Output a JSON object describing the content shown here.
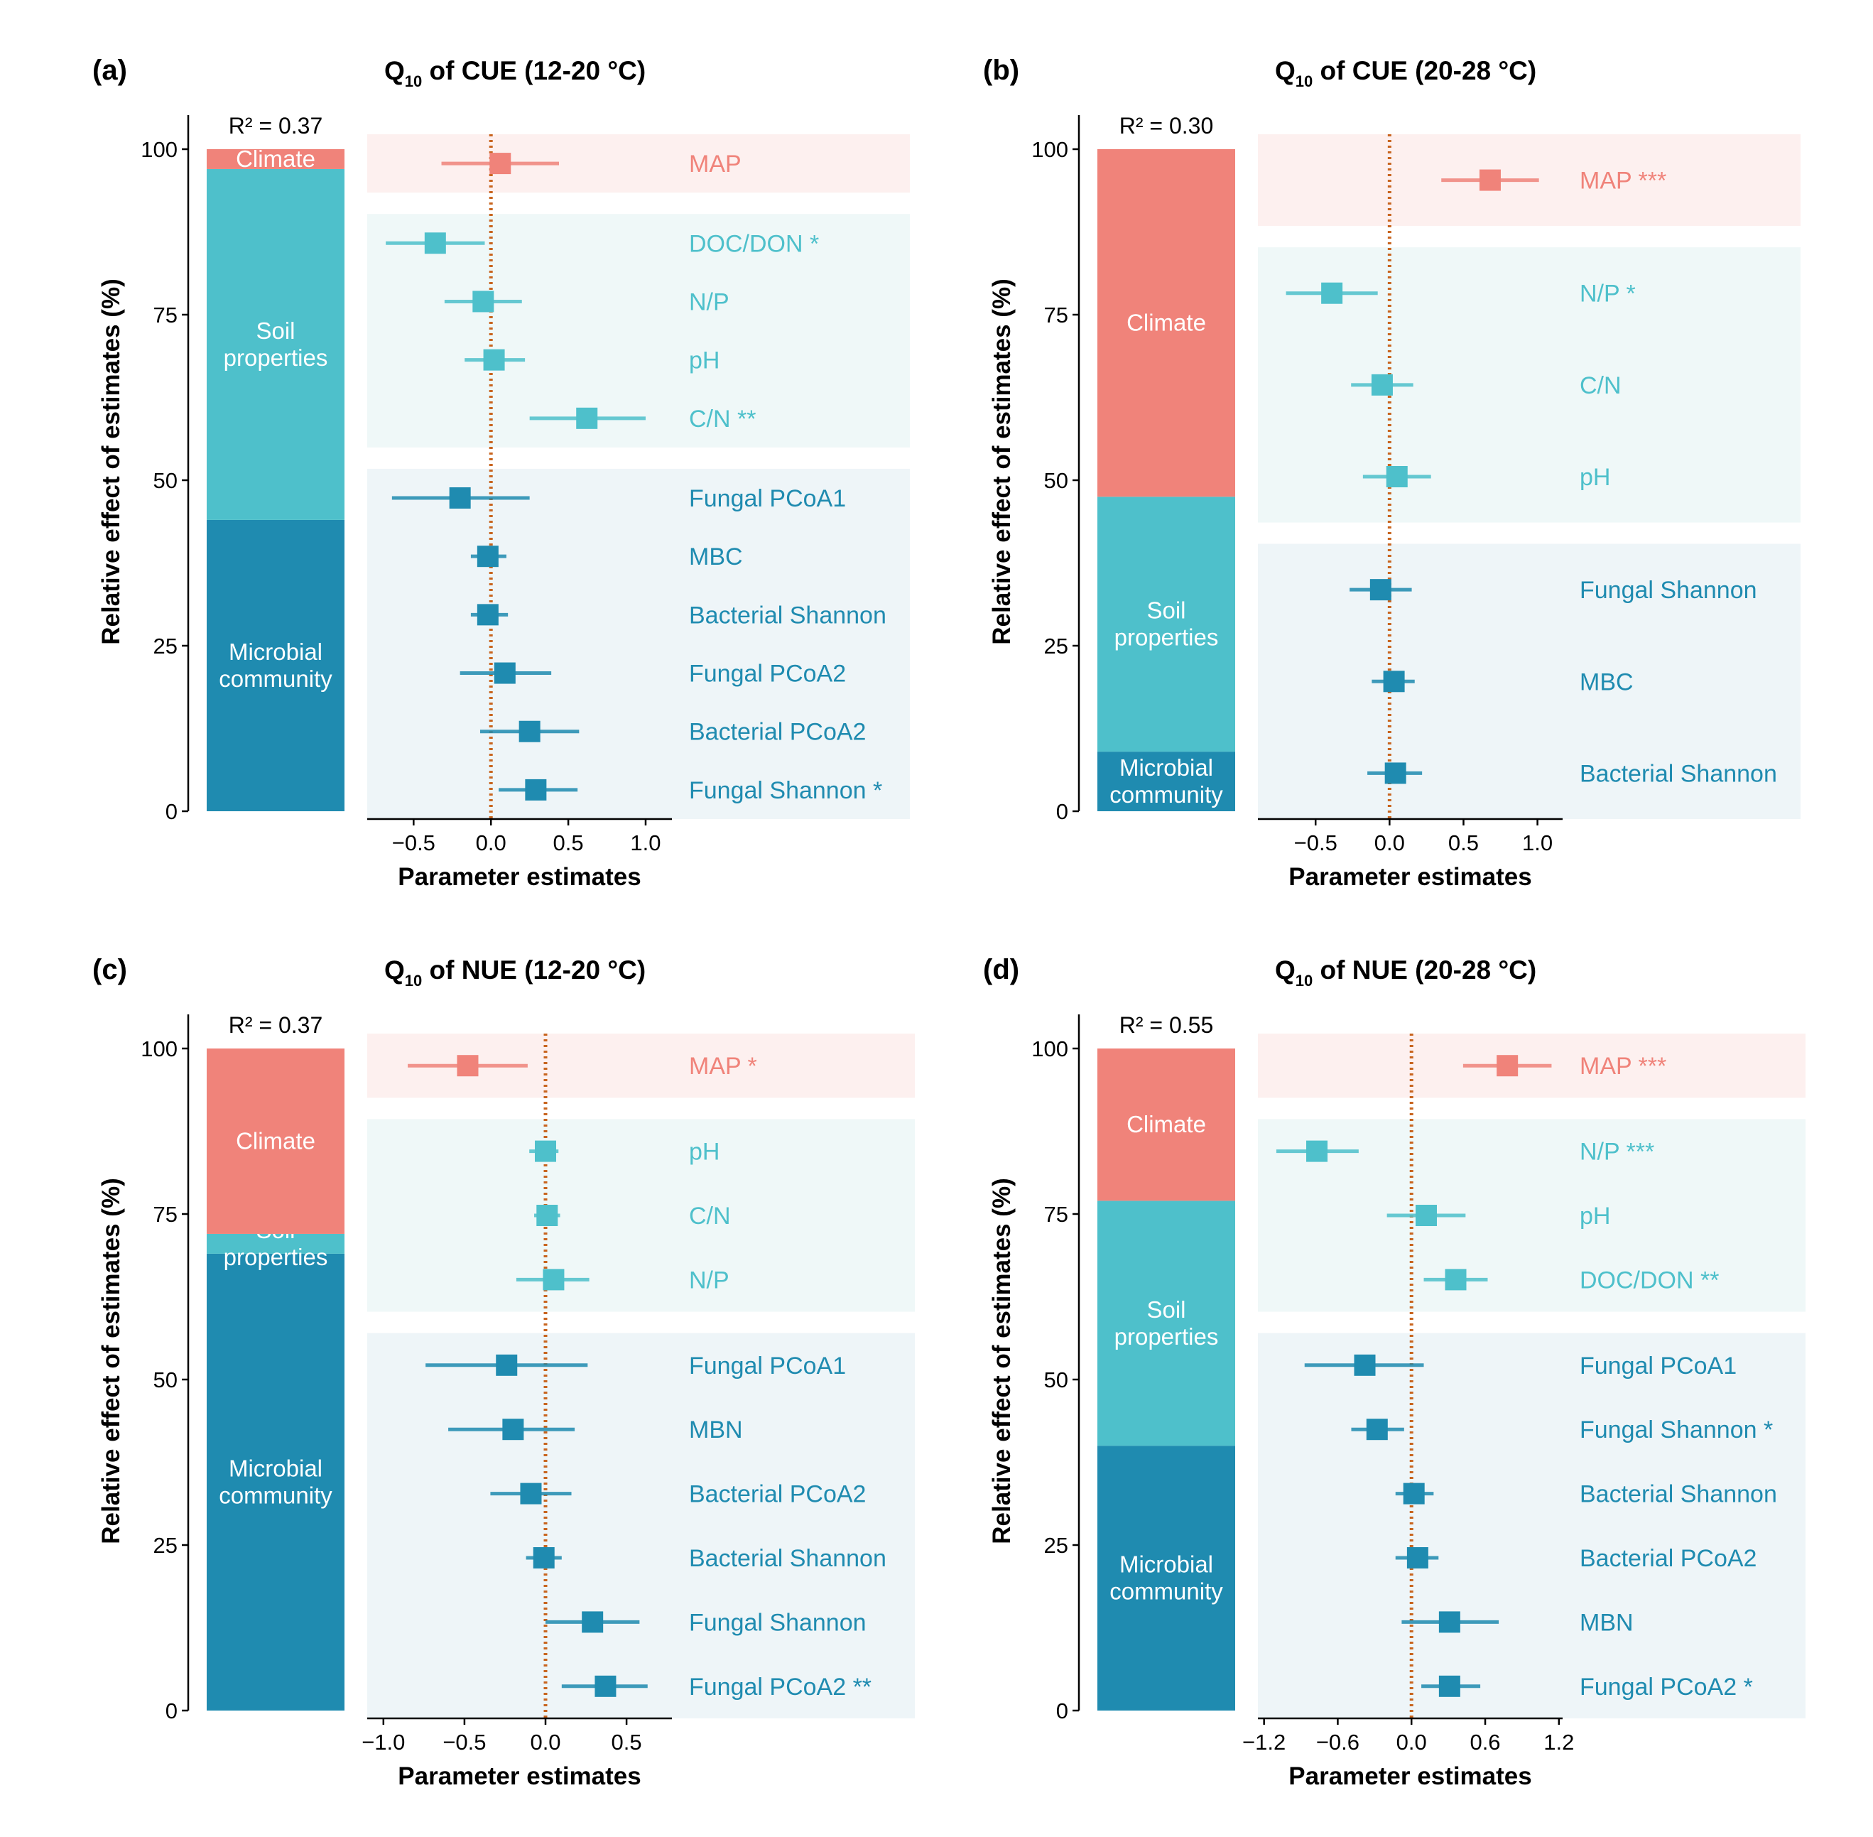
{
  "colors": {
    "Climate": "#F0837A",
    "Soil properties": "#4EC0CB",
    "Microbial community": "#1F8BB0",
    "shade_Climate": "#FDF0EF",
    "shade_Soil properties": "#EFF8F8",
    "shade_Microbial community": "#EEF5F8",
    "zero_line": "#C8641E",
    "axis": "#000000"
  },
  "chart_data": [
    {
      "type": "forest+stacked-bar",
      "panel": "(a)",
      "title": {
        "q": "Q",
        "sub": "10",
        "rest": " of CUE (12-20 °C)"
      },
      "r2": "R² = 0.37",
      "ylabel": "Relative effect of estimates (%)",
      "yticks": [
        0,
        25,
        50,
        75,
        100
      ],
      "stack": [
        {
          "name": "Microbial community",
          "label": [
            "Microbial",
            "community"
          ],
          "value": 44
        },
        {
          "name": "Soil properties",
          "label": [
            "Soil",
            "properties"
          ],
          "value": 53
        },
        {
          "name": "Climate",
          "label": [
            "Climate"
          ],
          "value": 3
        }
      ],
      "xlabel": "Parameter estimates",
      "xlim": [
        -0.8,
        1.17
      ],
      "xticks": [
        -0.5,
        0,
        0.5,
        1.0
      ],
      "xtick_labels": [
        "−0.5",
        "0.0",
        "0.5",
        "1.0"
      ],
      "groups": [
        {
          "name": "Climate",
          "rows": [
            {
              "label": "MAP",
              "est": 0.06,
              "lo": -0.32,
              "hi": 0.44
            }
          ]
        },
        {
          "name": "Soil properties",
          "rows": [
            {
              "label": "DOC/DON *",
              "est": -0.36,
              "lo": -0.68,
              "hi": -0.04
            },
            {
              "label": "N/P",
              "est": -0.05,
              "lo": -0.3,
              "hi": 0.2
            },
            {
              "label": "pH",
              "est": 0.02,
              "lo": -0.17,
              "hi": 0.22
            },
            {
              "label": "C/N **",
              "est": 0.62,
              "lo": 0.25,
              "hi": 1.0
            }
          ]
        },
        {
          "name": "Microbial community",
          "rows": [
            {
              "label": "Fungal PCoA1",
              "est": -0.2,
              "lo": -0.64,
              "hi": 0.25
            },
            {
              "label": "MBC",
              "est": -0.02,
              "lo": -0.13,
              "hi": 0.1
            },
            {
              "label": "Bacterial Shannon",
              "est": -0.02,
              "lo": -0.13,
              "hi": 0.11
            },
            {
              "label": "Fungal PCoA2",
              "est": 0.09,
              "lo": -0.2,
              "hi": 0.39
            },
            {
              "label": "Bacterial PCoA2",
              "est": 0.25,
              "lo": -0.07,
              "hi": 0.57
            },
            {
              "label": "Fungal Shannon *",
              "est": 0.29,
              "lo": 0.05,
              "hi": 0.56
            }
          ]
        }
      ]
    },
    {
      "type": "forest+stacked-bar",
      "panel": "(b)",
      "title": {
        "q": "Q",
        "sub": "10",
        "rest": " of CUE (20-28 °C)"
      },
      "r2": "R² = 0.30",
      "ylabel": "Relative effect of estimates (%)",
      "yticks": [
        0,
        25,
        50,
        75,
        100
      ],
      "stack": [
        {
          "name": "Microbial community",
          "label": [
            "Microbial",
            "community"
          ],
          "value": 9
        },
        {
          "name": "Soil properties",
          "label": [
            "Soil",
            "properties"
          ],
          "value": 38.5
        },
        {
          "name": "Climate",
          "label": [
            "Climate"
          ],
          "value": 52.5
        }
      ],
      "xlabel": "Parameter estimates",
      "xlim": [
        -0.89,
        1.17
      ],
      "xticks": [
        -0.5,
        0,
        0.5,
        1.0
      ],
      "xtick_labels": [
        "−0.5",
        "0.0",
        "0.5",
        "1.0"
      ],
      "groups": [
        {
          "name": "Climate",
          "rows": [
            {
              "label": "MAP ***",
              "est": 0.68,
              "lo": 0.35,
              "hi": 1.01
            }
          ]
        },
        {
          "name": "Soil properties",
          "rows": [
            {
              "label": "N/P *",
              "est": -0.39,
              "lo": -0.7,
              "hi": -0.08
            },
            {
              "label": "C/N",
              "est": -0.05,
              "lo": -0.26,
              "hi": 0.16
            },
            {
              "label": "pH",
              "est": 0.05,
              "lo": -0.18,
              "hi": 0.28
            }
          ]
        },
        {
          "name": "Microbial community",
          "rows": [
            {
              "label": "Fungal Shannon",
              "est": -0.06,
              "lo": -0.27,
              "hi": 0.15
            },
            {
              "label": "MBC",
              "est": 0.03,
              "lo": -0.12,
              "hi": 0.17
            },
            {
              "label": "Bacterial Shannon",
              "est": 0.04,
              "lo": -0.15,
              "hi": 0.22
            }
          ]
        }
      ]
    },
    {
      "type": "forest+stacked-bar",
      "panel": "(c)",
      "title": {
        "q": "Q",
        "sub": "10",
        "rest": " of NUE (12-20 °C)"
      },
      "r2": "R² = 0.37",
      "ylabel": "Relative effect of estimates (%)",
      "yticks": [
        0,
        25,
        50,
        75,
        100
      ],
      "stack": [
        {
          "name": "Microbial community",
          "label": [
            "Microbial",
            "community"
          ],
          "value": 69
        },
        {
          "name": "Soil properties",
          "label": [
            "Soil",
            "properties"
          ],
          "value": 3
        },
        {
          "name": "Climate",
          "label": [
            "Climate"
          ],
          "value": 28
        }
      ],
      "xlabel": "Parameter estimates",
      "xlim": [
        -1.1,
        0.78
      ],
      "xticks": [
        -1.0,
        -0.5,
        0,
        0.5
      ],
      "xtick_labels": [
        "−1.0",
        "−0.5",
        "0.0",
        "0.5"
      ],
      "groups": [
        {
          "name": "Climate",
          "rows": [
            {
              "label": "MAP *",
              "est": -0.48,
              "lo": -0.85,
              "hi": -0.11
            }
          ]
        },
        {
          "name": "Soil properties",
          "rows": [
            {
              "label": "pH",
              "est": 0.0,
              "lo": -0.1,
              "hi": 0.08
            },
            {
              "label": "C/N",
              "est": 0.01,
              "lo": -0.07,
              "hi": 0.09
            },
            {
              "label": "N/P",
              "est": 0.05,
              "lo": -0.18,
              "hi": 0.27
            }
          ]
        },
        {
          "name": "Microbial community",
          "rows": [
            {
              "label": "Fungal PCoA1",
              "est": -0.24,
              "lo": -0.74,
              "hi": 0.26
            },
            {
              "label": "MBN",
              "est": -0.2,
              "lo": -0.6,
              "hi": 0.18
            },
            {
              "label": "Bacterial PCoA2",
              "est": -0.09,
              "lo": -0.34,
              "hi": 0.16
            },
            {
              "label": "Bacterial Shannon",
              "est": -0.01,
              "lo": -0.12,
              "hi": 0.1
            },
            {
              "label": "Fungal Shannon",
              "est": 0.29,
              "lo": 0.0,
              "hi": 0.58
            },
            {
              "label": "Fungal PCoA2 **",
              "est": 0.37,
              "lo": 0.1,
              "hi": 0.63
            }
          ]
        }
      ]
    },
    {
      "type": "forest+stacked-bar",
      "panel": "(d)",
      "title": {
        "q": "Q",
        "sub": "10",
        "rest": " of NUE (20-28 °C)"
      },
      "r2": "R² = 0.55",
      "ylabel": "Relative effect of estimates (%)",
      "yticks": [
        0,
        25,
        50,
        75,
        100
      ],
      "stack": [
        {
          "name": "Microbial community",
          "label": [
            "Microbial",
            "community"
          ],
          "value": 40
        },
        {
          "name": "Soil properties",
          "label": [
            "Soil",
            "properties"
          ],
          "value": 37
        },
        {
          "name": "Climate",
          "label": [
            "Climate"
          ],
          "value": 23
        }
      ],
      "xlabel": "Parameter estimates",
      "xlim": [
        -1.25,
        1.23
      ],
      "xticks": [
        -1.2,
        -0.6,
        0,
        0.6,
        1.2
      ],
      "xtick_labels": [
        "−1.2",
        "−0.6",
        "0.0",
        "0.6",
        "1.2"
      ],
      "groups": [
        {
          "name": "Climate",
          "rows": [
            {
              "label": "MAP ***",
              "est": 0.78,
              "lo": 0.42,
              "hi": 1.14
            }
          ]
        },
        {
          "name": "Soil properties",
          "rows": [
            {
              "label": "N/P ***",
              "est": -0.77,
              "lo": -1.1,
              "hi": -0.43
            },
            {
              "label": "pH",
              "est": 0.12,
              "lo": -0.2,
              "hi": 0.44
            },
            {
              "label": "DOC/DON **",
              "est": 0.36,
              "lo": 0.1,
              "hi": 0.62
            }
          ]
        },
        {
          "name": "Microbial community",
          "rows": [
            {
              "label": "Fungal PCoA1",
              "est": -0.38,
              "lo": -0.87,
              "hi": 0.1
            },
            {
              "label": "Fungal Shannon *",
              "est": -0.28,
              "lo": -0.49,
              "hi": -0.06
            },
            {
              "label": "Bacterial Shannon",
              "est": 0.02,
              "lo": -0.13,
              "hi": 0.18
            },
            {
              "label": "Bacterial PCoA2",
              "est": 0.05,
              "lo": -0.13,
              "hi": 0.22
            },
            {
              "label": "MBN",
              "est": 0.31,
              "lo": -0.08,
              "hi": 0.71
            },
            {
              "label": "Fungal PCoA2 *",
              "est": 0.31,
              "lo": 0.08,
              "hi": 0.56
            }
          ]
        }
      ]
    }
  ]
}
